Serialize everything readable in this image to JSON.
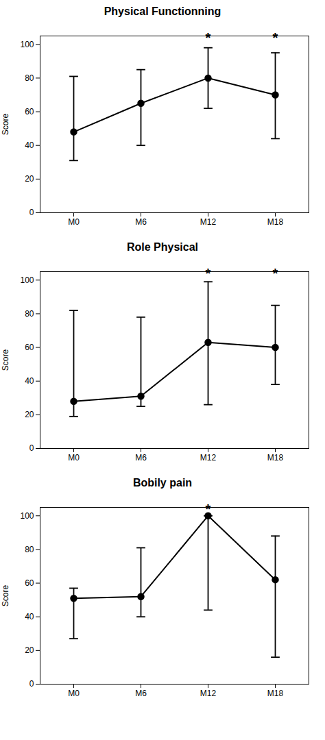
{
  "chart_data": [
    {
      "type": "line",
      "title": "Physical Functionning",
      "ylabel": "Score",
      "categories": [
        "M0",
        "M6",
        "M12",
        "M18"
      ],
      "values": [
        48,
        65,
        80,
        70
      ],
      "error_upper": [
        81,
        85,
        98,
        95
      ],
      "error_lower": [
        31,
        40,
        62,
        44
      ],
      "annotations": [
        {
          "x": "M12",
          "y": 101,
          "text": "*"
        },
        {
          "x": "M18",
          "y": 101,
          "text": "*"
        }
      ],
      "ylim": [
        0,
        105
      ],
      "yticks": [
        0,
        20,
        40,
        60,
        80,
        100
      ],
      "color": "#000000",
      "marker": "circle",
      "line_style": "solid",
      "grid": false
    },
    {
      "type": "line",
      "title": "Role Physical",
      "ylabel": "Score",
      "categories": [
        "M0",
        "M6",
        "M12",
        "M18"
      ],
      "values": [
        28,
        31,
        63,
        60
      ],
      "error_upper": [
        82,
        78,
        99,
        85
      ],
      "error_lower": [
        19,
        25,
        26,
        38
      ],
      "annotations": [
        {
          "x": "M12",
          "y": 101,
          "text": "*"
        },
        {
          "x": "M18",
          "y": 101,
          "text": "*"
        }
      ],
      "ylim": [
        0,
        105
      ],
      "yticks": [
        0,
        20,
        40,
        60,
        80,
        100
      ],
      "color": "#000000",
      "marker": "circle",
      "line_style": "solid",
      "grid": false
    },
    {
      "type": "line",
      "title": "Bobily pain",
      "ylabel": "Score",
      "categories": [
        "M0",
        "M6",
        "M12",
        "M18"
      ],
      "values": [
        51,
        52,
        100,
        62
      ],
      "error_upper": [
        57,
        81,
        100,
        88
      ],
      "error_lower": [
        27,
        40,
        44,
        16
      ],
      "annotations": [
        {
          "x": "M12",
          "y": 101,
          "text": "*"
        }
      ],
      "ylim": [
        0,
        105
      ],
      "yticks": [
        0,
        20,
        40,
        60,
        80,
        100
      ],
      "color": "#000000",
      "marker": "circle",
      "line_style": "solid",
      "grid": false
    }
  ]
}
